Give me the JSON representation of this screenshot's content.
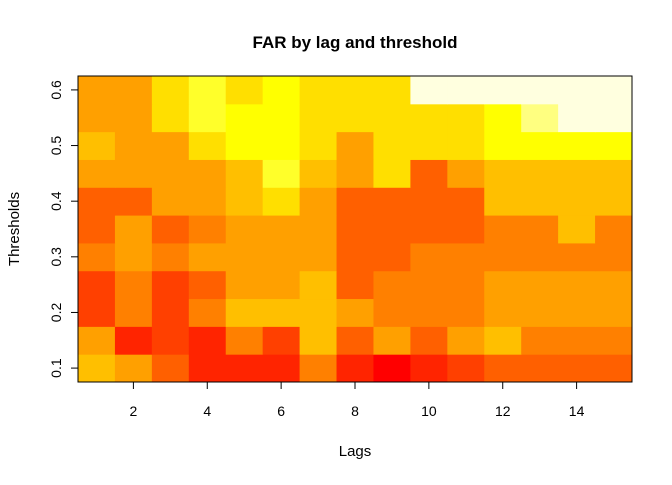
{
  "chart_data": {
    "type": "heatmap",
    "title": "FAR by lag and threshold",
    "xlabel": "Lags",
    "ylabel": "Thresholds",
    "x": [
      1,
      2,
      3,
      4,
      5,
      6,
      7,
      8,
      9,
      10,
      11,
      12,
      13,
      14,
      15
    ],
    "y": [
      0.1,
      0.15,
      0.2,
      0.25,
      0.3,
      0.35,
      0.4,
      0.45,
      0.5,
      0.55,
      0.6
    ],
    "xticks": [
      2,
      4,
      6,
      8,
      10,
      12,
      14
    ],
    "yticks": [
      0.1,
      0.2,
      0.3,
      0.4,
      0.5,
      0.6
    ],
    "xlim": [
      0.5,
      15.5
    ],
    "ylim": [
      0.075,
      0.625
    ],
    "palette": "heat.colors",
    "cell_colors_by_row_bottom_to_top": [
      [
        "#FFBF00",
        "#FFA000",
        "#FF6000",
        "#FF2400",
        "#FF2400",
        "#FF2400",
        "#FF8000",
        "#FF2400",
        "#FF0000",
        "#FF2400",
        "#FF4000",
        "#FF6000",
        "#FF6000",
        "#FF6000",
        "#FF6000"
      ],
      [
        "#FFA000",
        "#FF2400",
        "#FF4000",
        "#FF2400",
        "#FF8000",
        "#FF4000",
        "#FFBF00",
        "#FF6000",
        "#FFA000",
        "#FF6000",
        "#FFA000",
        "#FFBF00",
        "#FF8000",
        "#FF8000",
        "#FF8000"
      ],
      [
        "#FF4000",
        "#FF8000",
        "#FF4000",
        "#FF8000",
        "#FFBF00",
        "#FFBF00",
        "#FFBF00",
        "#FFA000",
        "#FF8000",
        "#FF8000",
        "#FF8000",
        "#FFA000",
        "#FFA000",
        "#FFA000",
        "#FFA000"
      ],
      [
        "#FF4000",
        "#FF8000",
        "#FF4000",
        "#FF6000",
        "#FFA000",
        "#FFA000",
        "#FFBF00",
        "#FF6000",
        "#FF8000",
        "#FF8000",
        "#FF8000",
        "#FFA000",
        "#FFA000",
        "#FFA000",
        "#FFA000"
      ],
      [
        "#FF8000",
        "#FFA000",
        "#FF8000",
        "#FFA000",
        "#FFA000",
        "#FFA000",
        "#FFA000",
        "#FF6000",
        "#FF6000",
        "#FF8000",
        "#FF8000",
        "#FF8000",
        "#FF8000",
        "#FF8000",
        "#FF8000"
      ],
      [
        "#FF6000",
        "#FFA000",
        "#FF6000",
        "#FF8000",
        "#FFA000",
        "#FFA000",
        "#FFA000",
        "#FF6000",
        "#FF6000",
        "#FF6000",
        "#FF6000",
        "#FF8000",
        "#FF8000",
        "#FFBF00",
        "#FF8000"
      ],
      [
        "#FF6000",
        "#FF6000",
        "#FFA000",
        "#FFA000",
        "#FFBF00",
        "#FFDF00",
        "#FFA000",
        "#FF6000",
        "#FF6000",
        "#FF6000",
        "#FF6000",
        "#FFBF00",
        "#FFBF00",
        "#FFBF00",
        "#FFBF00"
      ],
      [
        "#FFA000",
        "#FFA000",
        "#FFA000",
        "#FFA000",
        "#FFBF00",
        "#FFFF2A",
        "#FFBF00",
        "#FFA000",
        "#FFDF00",
        "#FF6000",
        "#FFA000",
        "#FFBF00",
        "#FFBF00",
        "#FFBF00",
        "#FFBF00"
      ],
      [
        "#FFBF00",
        "#FFA000",
        "#FFA000",
        "#FFDF00",
        "#FFFF00",
        "#FFFF00",
        "#FFDF00",
        "#FFA000",
        "#FFDF00",
        "#FFDF00",
        "#FFDF00",
        "#FFFF00",
        "#FFFF00",
        "#FFFF00",
        "#FFFF00"
      ],
      [
        "#FFA000",
        "#FFA000",
        "#FFDF00",
        "#FFFF2A",
        "#FFFF00",
        "#FFFF00",
        "#FFDF00",
        "#FFDF00",
        "#FFDF00",
        "#FFDF00",
        "#FFDF00",
        "#FFFF00",
        "#FFFF80",
        "#FFFFDF",
        "#FFFFDF"
      ],
      [
        "#FFA000",
        "#FFA000",
        "#FFDF00",
        "#FFFF2A",
        "#FFDF00",
        "#FFFF00",
        "#FFDF00",
        "#FFDF00",
        "#FFDF00",
        "#FFFFDF",
        "#FFFFDF",
        "#FFFFDF",
        "#FFFFDF",
        "#FFFFDF",
        "#FFFFDF"
      ]
    ]
  }
}
